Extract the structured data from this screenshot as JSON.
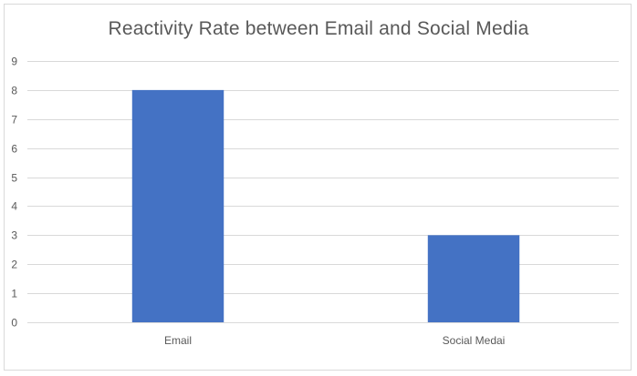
{
  "chart_data": {
    "type": "bar",
    "title": "Reactivity Rate between Email and Social Media",
    "categories": [
      "Email",
      "Social Medai"
    ],
    "values": [
      8,
      3
    ],
    "ylim": [
      0,
      9
    ],
    "yticks": [
      0,
      1,
      2,
      3,
      4,
      5,
      6,
      7,
      8,
      9
    ],
    "xlabel": "",
    "ylabel": "",
    "grid": true,
    "legend": "none",
    "colors": {
      "bar": "#4472c4",
      "grid": "#d9d9d9",
      "text": "#595959"
    }
  }
}
